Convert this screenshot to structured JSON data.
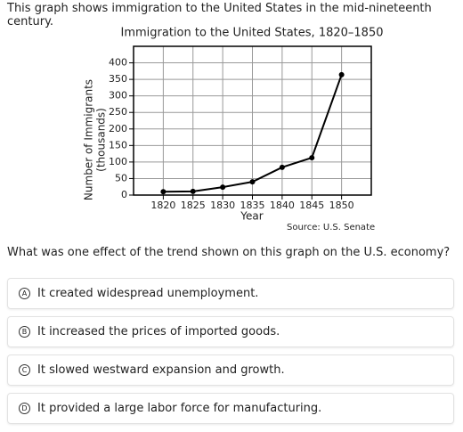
{
  "intro": "This graph shows immigration to the United States in the mid-nineteenth century.",
  "chart_data": {
    "type": "line",
    "title": "Immigration to the United States, 1820–1850",
    "x_label": "Year",
    "y_label": "Number of Immigrants",
    "y_unit": "(thousands)",
    "source": "Source: U.S. Senate",
    "x": [
      1820,
      1825,
      1830,
      1835,
      1840,
      1845,
      1850
    ],
    "series": [
      {
        "color": "#000000",
        "values": [
          10,
          11,
          24,
          40,
          84,
          113,
          364
        ]
      }
    ],
    "xlim": [
      1815,
      1855
    ],
    "xticks": [
      1820,
      1825,
      1830,
      1835,
      1840,
      1845,
      1850
    ],
    "ylim": [
      0,
      450
    ],
    "yticks": [
      0,
      50,
      100,
      150,
      200,
      250,
      300,
      350,
      400
    ],
    "grid": true
  },
  "question": "What was one effect of the trend shown on this graph on the U.S. economy?",
  "options": [
    {
      "letter": "A",
      "text": "It created widespread unemployment."
    },
    {
      "letter": "B",
      "text": "It increased the prices of imported goods."
    },
    {
      "letter": "C",
      "text": "It slowed westward expansion and growth."
    },
    {
      "letter": "D",
      "text": "It provided a large labor force for manufacturing."
    }
  ]
}
